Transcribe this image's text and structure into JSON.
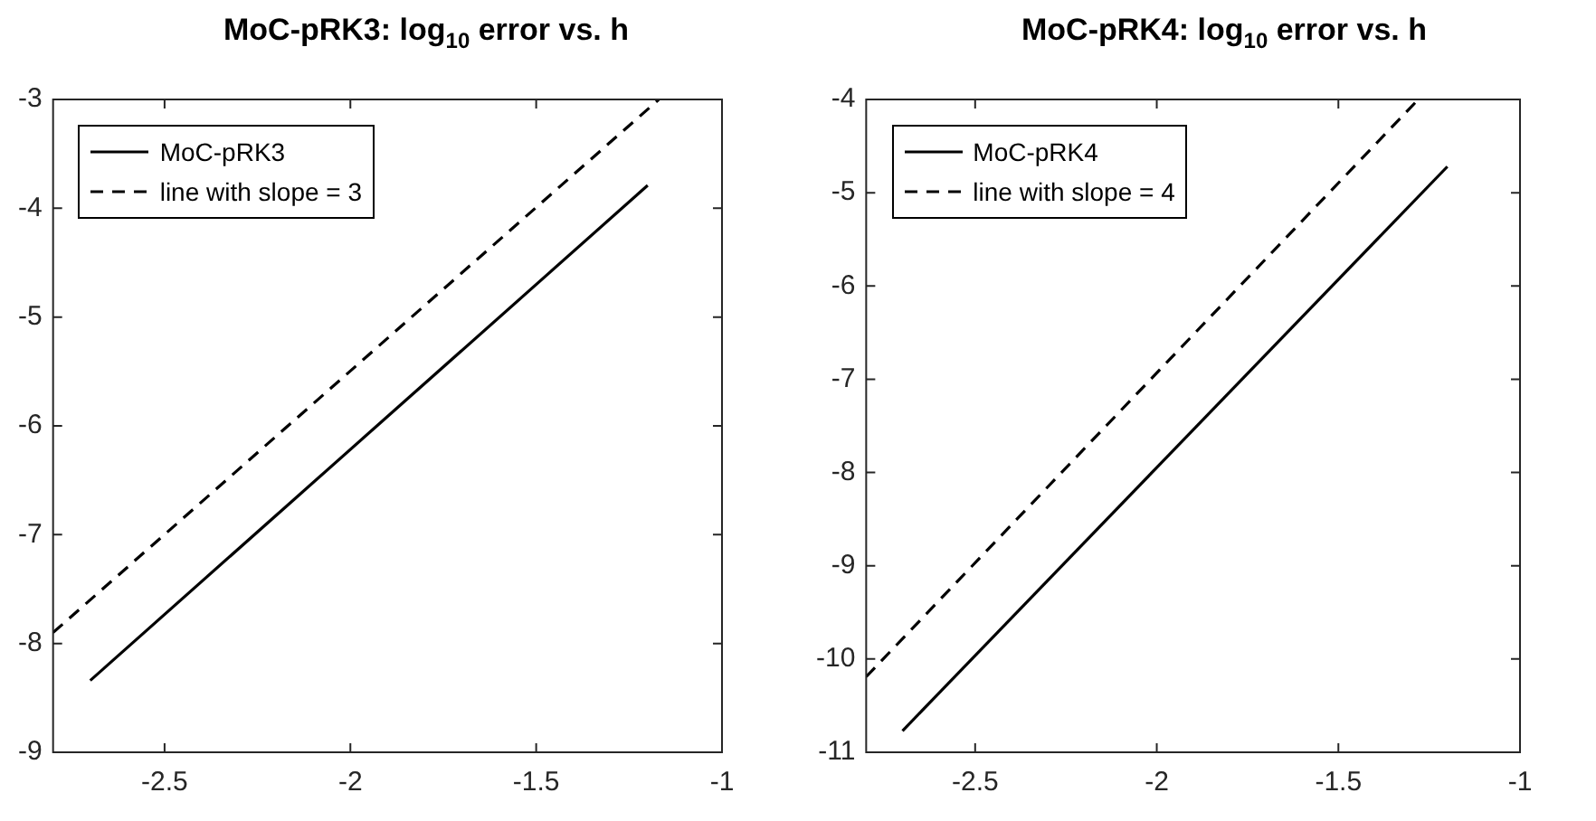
{
  "chart_data": [
    {
      "type": "line",
      "title": "MoC-pRK3: log$_{10}$ error vs. h",
      "xlim": [
        -2.8,
        -1
      ],
      "xticks": [
        -2.5,
        -2,
        -1.5,
        -1
      ],
      "ylim": [
        -9,
        -3
      ],
      "yticks": [
        -9,
        -8,
        -7,
        -6,
        -5,
        -4,
        -3
      ],
      "grid": false,
      "legend": "top left",
      "series": [
        {
          "name": "MoC-pRK3",
          "color": "#000000",
          "line_style": "solid",
          "x": [
            -2.7,
            -1.2
          ],
          "values": [
            -8.34,
            -3.79
          ]
        },
        {
          "name": "line with slope = 3",
          "color": "#000000",
          "line_style": "dashed",
          "x": [
            -2.8,
            -1.17
          ],
          "values": [
            -7.9,
            -3
          ]
        }
      ]
    },
    {
      "type": "line",
      "title": "MoC-pRK4: log$_{10}$ error vs. h",
      "xlim": [
        -2.8,
        -1
      ],
      "xticks": [
        -2.5,
        -2,
        -1.5,
        -1
      ],
      "ylim": [
        -11,
        -4
      ],
      "yticks": [
        -11,
        -10,
        -9,
        -8,
        -7,
        -6,
        -5,
        -4
      ],
      "grid": false,
      "legend": "top left",
      "series": [
        {
          "name": "MoC-pRK4",
          "color": "#000000",
          "line_style": "solid",
          "x": [
            -2.7,
            -1.2
          ],
          "values": [
            -10.77,
            -4.72
          ]
        },
        {
          "name": "line with slope = 4",
          "color": "#000000",
          "line_style": "dashed",
          "x": [
            -2.8,
            -1.28
          ],
          "values": [
            -10.19,
            -4
          ]
        }
      ]
    }
  ]
}
